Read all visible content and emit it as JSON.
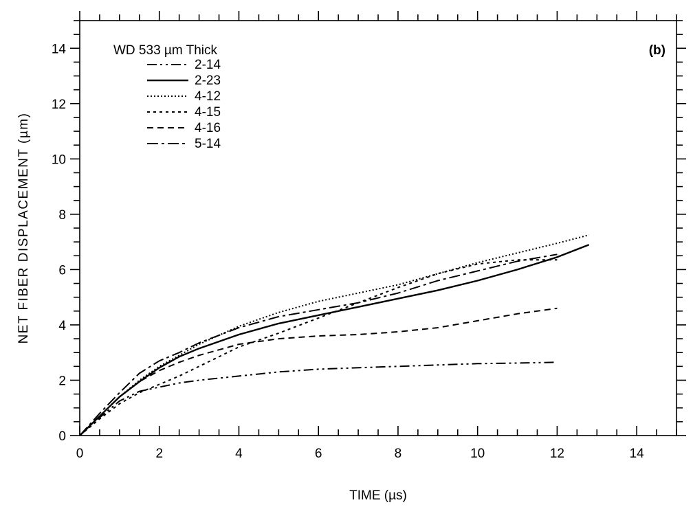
{
  "chart_data": {
    "type": "line",
    "title": "WD 533 µm Thick",
    "panel_label": "(b)",
    "xlabel": "TIME (µs)",
    "ylabel": "NET FIBER DISPLACEMENT (µm)",
    "xlim": [
      0,
      15
    ],
    "ylim": [
      0,
      15
    ],
    "xticks": [
      0,
      2,
      4,
      6,
      8,
      10,
      12,
      14
    ],
    "yticks": [
      0,
      2,
      4,
      6,
      8,
      10,
      12,
      14
    ],
    "grid": false,
    "legend_position": "top-left",
    "series": [
      {
        "name": "2-14",
        "dash": "14,5,3,5,3,5",
        "x": [
          0,
          0.5,
          1,
          1.5,
          2,
          2.5,
          3,
          4,
          5,
          6,
          7,
          8,
          9,
          10,
          11,
          12
        ],
        "y": [
          0,
          0.65,
          1.25,
          1.6,
          1.75,
          1.9,
          2.0,
          2.15,
          2.3,
          2.4,
          2.45,
          2.5,
          2.55,
          2.6,
          2.62,
          2.65
        ]
      },
      {
        "name": "2-23",
        "dash": "",
        "x": [
          0,
          0.5,
          1,
          1.5,
          2,
          2.5,
          3,
          4,
          5,
          6,
          7,
          8,
          9,
          10,
          11,
          12,
          12.8
        ],
        "y": [
          0,
          0.7,
          1.4,
          1.95,
          2.45,
          2.85,
          3.15,
          3.65,
          4.05,
          4.35,
          4.65,
          4.95,
          5.25,
          5.6,
          6.0,
          6.45,
          6.9
        ]
      },
      {
        "name": "4-12",
        "dash": "2,3",
        "x": [
          0,
          0.5,
          1,
          1.5,
          2,
          2.5,
          3,
          4,
          5,
          6,
          7,
          8,
          9,
          10,
          11,
          12,
          12.8
        ],
        "y": [
          0,
          0.7,
          1.4,
          2.0,
          2.5,
          2.9,
          3.3,
          3.95,
          4.45,
          4.85,
          5.15,
          5.45,
          5.85,
          6.25,
          6.6,
          6.95,
          7.25
        ]
      },
      {
        "name": "4-15",
        "dash": "4,5",
        "x": [
          0,
          0.5,
          1,
          1.5,
          2,
          2.5,
          3,
          4,
          5,
          6,
          7,
          8,
          9,
          10,
          11,
          12
        ],
        "y": [
          0,
          0.6,
          1.15,
          1.55,
          1.85,
          2.15,
          2.5,
          3.2,
          3.7,
          4.25,
          4.8,
          5.35,
          5.85,
          6.2,
          6.35,
          6.35
        ]
      },
      {
        "name": "4-16",
        "dash": "9,6",
        "x": [
          0,
          0.5,
          1,
          1.5,
          2,
          2.5,
          3,
          3.5,
          4,
          5,
          6,
          7,
          8,
          9,
          10,
          11,
          12
        ],
        "y": [
          0,
          0.7,
          1.4,
          1.95,
          2.35,
          2.65,
          2.9,
          3.1,
          3.3,
          3.5,
          3.6,
          3.65,
          3.75,
          3.9,
          4.15,
          4.4,
          4.6
        ]
      },
      {
        "name": "5-14",
        "dash": "16,5,4,5",
        "x": [
          0,
          0.5,
          1,
          1.5,
          2,
          2.5,
          3,
          4,
          5,
          6,
          7,
          8,
          9,
          10,
          11,
          12
        ],
        "y": [
          0,
          0.8,
          1.55,
          2.25,
          2.7,
          3.0,
          3.35,
          3.9,
          4.3,
          4.55,
          4.8,
          5.15,
          5.6,
          5.95,
          6.3,
          6.55
        ]
      }
    ]
  }
}
